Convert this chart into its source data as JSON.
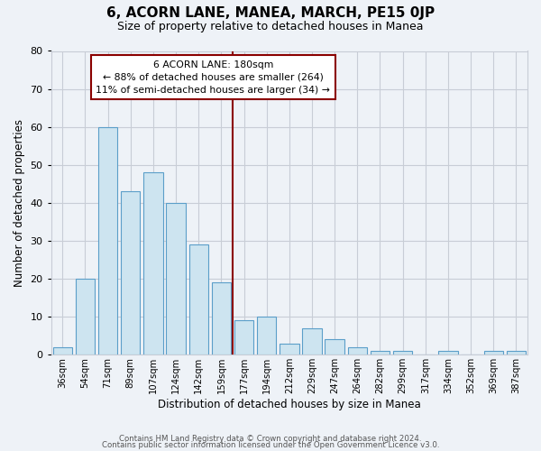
{
  "title": "6, ACORN LANE, MANEA, MARCH, PE15 0JP",
  "subtitle": "Size of property relative to detached houses in Manea",
  "xlabel": "Distribution of detached houses by size in Manea",
  "ylabel": "Number of detached properties",
  "bar_labels": [
    "36sqm",
    "54sqm",
    "71sqm",
    "89sqm",
    "107sqm",
    "124sqm",
    "142sqm",
    "159sqm",
    "177sqm",
    "194sqm",
    "212sqm",
    "229sqm",
    "247sqm",
    "264sqm",
    "282sqm",
    "299sqm",
    "317sqm",
    "334sqm",
    "352sqm",
    "369sqm",
    "387sqm"
  ],
  "bar_values": [
    2,
    20,
    60,
    43,
    48,
    40,
    29,
    19,
    9,
    10,
    3,
    7,
    4,
    2,
    1,
    1,
    0,
    1,
    0,
    1,
    1
  ],
  "bar_color": "#cde4f0",
  "bar_edge_color": "#5b9ec9",
  "vline_color": "#8b0000",
  "ylim": [
    0,
    80
  ],
  "yticks": [
    0,
    10,
    20,
    30,
    40,
    50,
    60,
    70,
    80
  ],
  "annotation_title": "6 ACORN LANE: 180sqm",
  "annotation_line1": "← 88% of detached houses are smaller (264)",
  "annotation_line2": "11% of semi-detached houses are larger (34) →",
  "footer_line1": "Contains HM Land Registry data © Crown copyright and database right 2024.",
  "footer_line2": "Contains public sector information licensed under the Open Government Licence v3.0.",
  "background_color": "#eef2f7",
  "plot_background_color": "#eef2f7",
  "grid_color": "#c8cdd6"
}
